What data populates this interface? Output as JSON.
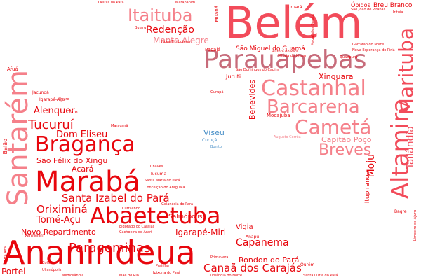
{
  "title": "",
  "palette": [
    "#e8060d",
    "#f24b5a",
    "#f5808a",
    "#c76b7a",
    "#4a90c8"
  ],
  "words": [
    {
      "text": "Belém",
      "color": "#f24b5a"
    },
    {
      "text": "Ananindeua",
      "color": "#e8060d"
    },
    {
      "text": "Parauapebas",
      "color": "#c76b7a"
    },
    {
      "text": "Marabá",
      "color": "#e8060d"
    },
    {
      "text": "Santarém",
      "color": "#f5808a"
    },
    {
      "text": "Castanhal",
      "color": "#f5808a"
    },
    {
      "text": "Abaetetuba",
      "color": "#e8060d"
    },
    {
      "text": "Bragança",
      "color": "#e8060d"
    },
    {
      "text": "Barcarena",
      "color": "#f5808a"
    },
    {
      "text": "Altamira",
      "color": "#f24b5a"
    },
    {
      "text": "Cametá",
      "color": "#f5808a"
    },
    {
      "text": "Marituba",
      "color": "#f24b5a"
    },
    {
      "text": "Itaituba",
      "color": "#f5808a"
    },
    {
      "text": "Breves",
      "color": "#f5808a"
    },
    {
      "text": "Paragominas",
      "color": "#e8060d"
    },
    {
      "text": "Tucuruí",
      "color": "#e8060d"
    },
    {
      "text": "Redenção",
      "color": "#e8060d"
    },
    {
      "text": "Santa Izabel do Pará",
      "color": "#e8060d"
    },
    {
      "text": "Capanema",
      "color": "#e8060d"
    },
    {
      "text": "Canaã dos Carajás",
      "color": "#e8060d"
    },
    {
      "text": "Tailândia",
      "color": "#f24b5a"
    },
    {
      "text": "Moju",
      "color": "#e8060d"
    },
    {
      "text": "Oriximiná",
      "color": "#e8060d"
    },
    {
      "text": "Tomé-Açu",
      "color": "#e8060d"
    },
    {
      "text": "Dom Eliseu",
      "color": "#e8060d"
    },
    {
      "text": "Alenquer",
      "color": "#e8060d"
    },
    {
      "text": "Capitão Poço",
      "color": "#f5808a"
    },
    {
      "text": "Igarapé-Miri",
      "color": "#e8060d"
    },
    {
      "text": "Novo Repartimento",
      "color": "#e8060d"
    },
    {
      "text": "São Félix do Xingu",
      "color": "#e8060d"
    },
    {
      "text": "Portel",
      "color": "#e8060d"
    },
    {
      "text": "Acará",
      "color": "#e8060d"
    },
    {
      "text": "São Miguel do Guamá",
      "color": "#e8060d"
    },
    {
      "text": "Monte Alegre",
      "color": "#f5808a"
    },
    {
      "text": "Xinguara",
      "color": "#e8060d"
    },
    {
      "text": "Benevides",
      "color": "#e8060d"
    },
    {
      "text": "Rondon do Pará",
      "color": "#e8060d"
    },
    {
      "text": "Viseu",
      "color": "#4a90c8"
    },
    {
      "text": "Vigia",
      "color": "#e8060d"
    },
    {
      "text": "Itupiranga",
      "color": "#e8060d"
    },
    {
      "text": "Breu Branco",
      "color": "#e8060d"
    },
    {
      "text": "Óbidos",
      "color": "#e8060d"
    },
    {
      "text": "Juruti",
      "color": "#e8060d"
    },
    {
      "text": "Salinópolis",
      "color": "#e8060d"
    },
    {
      "text": "Baião",
      "color": "#e8060d"
    },
    {
      "text": "Pacajá",
      "color": "#e8060d"
    },
    {
      "text": "Muaná",
      "color": "#e8060d"
    },
    {
      "text": "Mocajuba",
      "color": "#e8060d"
    },
    {
      "text": "Tucumã",
      "color": "#e8060d"
    },
    {
      "text": "Anapu",
      "color": "#e8060d"
    },
    {
      "text": "Afuá",
      "color": "#e8060d"
    },
    {
      "text": "Bagre",
      "color": "#e8060d"
    },
    {
      "text": "Faro",
      "color": "#e8060d"
    },
    {
      "text": "Jacundá",
      "color": "#e8060d"
    },
    {
      "text": "Almeirim",
      "color": "#e8060d"
    },
    {
      "text": "Igarapé-Açu",
      "color": "#e8060d"
    },
    {
      "text": "Uruará",
      "color": "#e8060d"
    },
    {
      "text": "Ourém",
      "color": "#e8060d"
    },
    {
      "text": "Curuçá",
      "color": "#4a90c8"
    },
    {
      "text": "Bonito",
      "color": "#4a90c8"
    },
    {
      "text": "Limoeiro do Ajuru",
      "color": "#e8060d"
    },
    {
      "text": "Oeiras do Pará",
      "color": "#e8060d"
    },
    {
      "text": "Gurupá",
      "color": "#e8060d"
    },
    {
      "text": "Chaves",
      "color": "#e8060d"
    },
    {
      "text": "Colares",
      "color": "#e8060d"
    },
    {
      "text": "Primavera",
      "color": "#e8060d"
    },
    {
      "text": "Prainha",
      "color": "#e8060d"
    },
    {
      "text": "Irituia",
      "color": "#e8060d"
    },
    {
      "text": "Ipixuna do Pará",
      "color": "#e8060d"
    },
    {
      "text": "Ulianópolis",
      "color": "#e8060d"
    },
    {
      "text": "Mãe do Rio",
      "color": "#e8060d"
    },
    {
      "text": "Medicilândia",
      "color": "#e8060d"
    },
    {
      "text": "Garrafão do Norte",
      "color": "#e8060d"
    },
    {
      "text": "Nova Esperança do Piriá",
      "color": "#e8060d"
    },
    {
      "text": "São João de Pirabas",
      "color": "#e8060d"
    },
    {
      "text": "Conceição do Araguaia",
      "color": "#e8060d"
    },
    {
      "text": "Santa Maria do Pará",
      "color": "#e8060d"
    },
    {
      "text": "Santa Luzia do Pará",
      "color": "#e8060d"
    },
    {
      "text": "Ourilândia do Norte",
      "color": "#e8060d"
    },
    {
      "text": "Cachoeira do Arari",
      "color": "#e8060d"
    },
    {
      "text": "Eldorado do Carajás",
      "color": "#e8060d"
    },
    {
      "text": "Curralinho",
      "color": "#e8060d"
    },
    {
      "text": "Soure",
      "color": "#e8060d"
    },
    {
      "text": "Magalhães Barata",
      "color": "#e8060d"
    },
    {
      "text": "Terra Alta",
      "color": "#e8060d"
    },
    {
      "text": "Goianésia do Pará",
      "color": "#e8060d"
    },
    {
      "text": "Nova Timboteua",
      "color": "#e8060d"
    },
    {
      "text": "São Domingos do Capim",
      "color": "#e8060d"
    },
    {
      "text": "Aurora do Pará",
      "color": "#e8060d"
    },
    {
      "text": "Vitória do Xingu",
      "color": "#e8060d"
    },
    {
      "text": "Quatipuru",
      "color": "#e8060d"
    },
    {
      "text": "Maracanã",
      "color": "#e8060d"
    },
    {
      "text": "Marapanim",
      "color": "#e8060d"
    },
    {
      "text": "Bujaru",
      "color": "#e8060d"
    },
    {
      "text": "Augusto Corrêa",
      "color": "#f5808a"
    },
    {
      "text": "Dom Eliseu",
      "color": "#e8060d"
    }
  ]
}
